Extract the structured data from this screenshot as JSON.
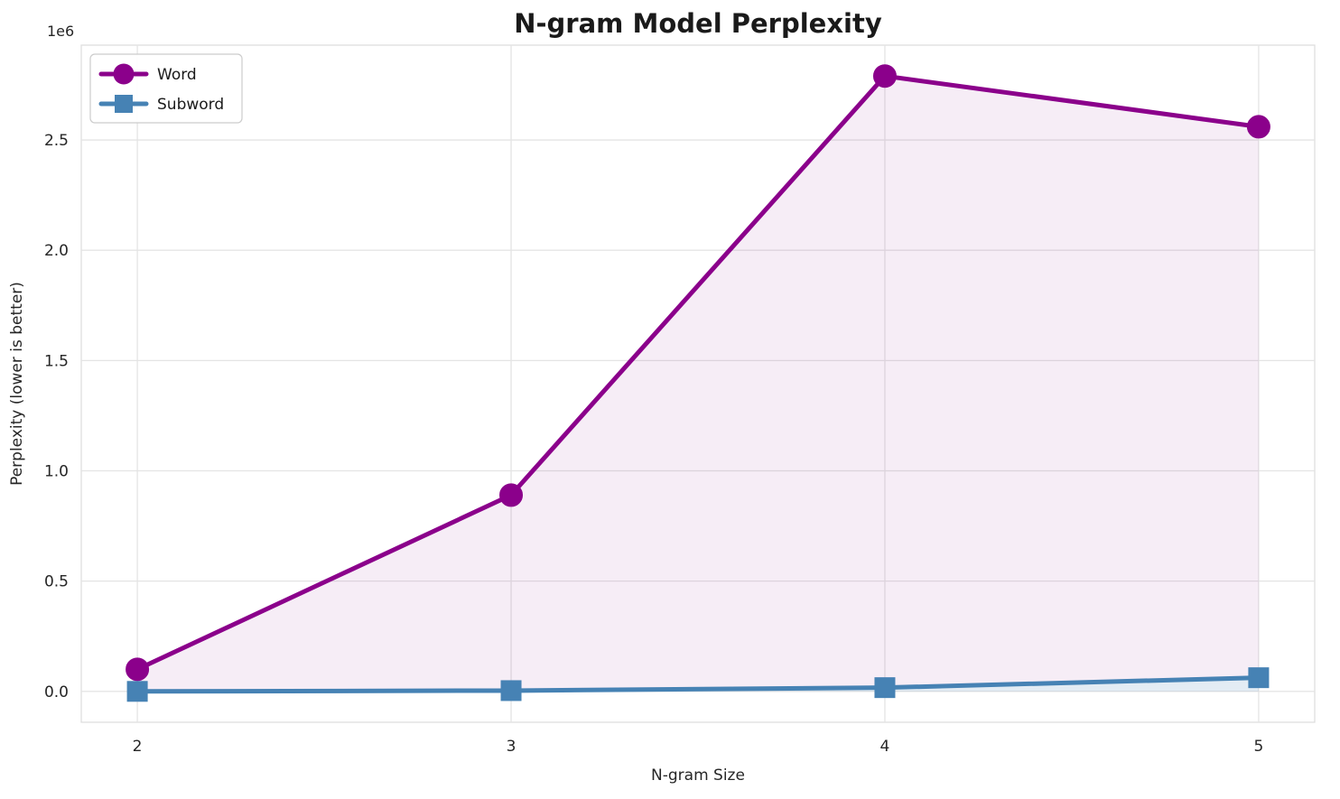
{
  "chart_data": {
    "type": "line",
    "title": "N-gram Model Perplexity",
    "xlabel": "N-gram Size",
    "ylabel": "Perplexity (lower is better)",
    "offset_text": "1e6",
    "x": [
      2,
      3,
      4,
      5
    ],
    "series": [
      {
        "name": "Word",
        "values": [
          100000,
          890000,
          2790000,
          2560000
        ],
        "color": "#8B008B",
        "marker": "circle"
      },
      {
        "name": "Subword",
        "values": [
          40,
          3500,
          17000,
          62000
        ],
        "color": "#4682B4",
        "marker": "square"
      }
    ],
    "fills": [
      {
        "between": [
          "Word",
          "Subword"
        ],
        "color": "#800080",
        "opacity": 0.07
      },
      {
        "between": [
          "Subword",
          "zero"
        ],
        "color": "#4682B4",
        "opacity": 0.15
      }
    ],
    "xlim": [
      1.85,
      5.15
    ],
    "ylim": [
      -140000,
      2930000
    ],
    "xticks": [
      2,
      3,
      4,
      5
    ],
    "xtick_labels": [
      "2",
      "3",
      "4",
      "5"
    ],
    "yticks": [
      0,
      500000,
      1000000,
      1500000,
      2000000,
      2500000
    ],
    "ytick_labels": [
      "0.0",
      "0.5",
      "1.0",
      "1.5",
      "2.0",
      "2.5"
    ],
    "grid": true,
    "grid_color": "#e4e4e4",
    "spine_color": "#dcdcdc",
    "legend_position": "upper left",
    "legend_labels": [
      "Word",
      "Subword"
    ]
  }
}
